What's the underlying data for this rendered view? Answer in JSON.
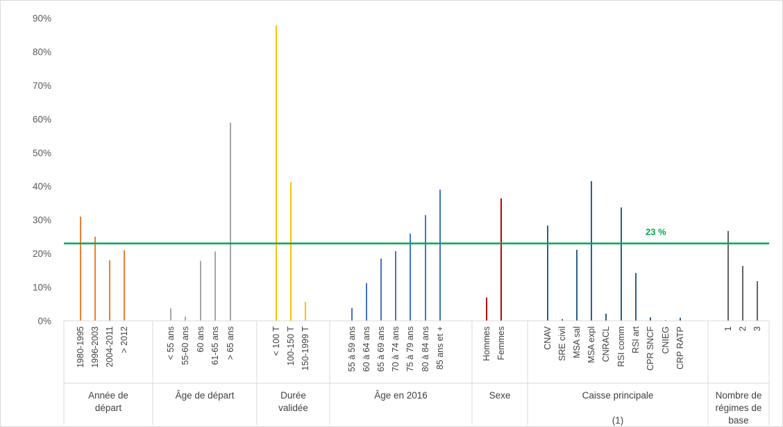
{
  "chart_data": {
    "type": "bar",
    "ylim": [
      0,
      90
    ],
    "yticks": [
      "0%",
      "10%",
      "20%",
      "30%",
      "40%",
      "50%",
      "60%",
      "70%",
      "80%",
      "90%"
    ],
    "grid": false,
    "reference_line": {
      "value": 23,
      "label": "23 %",
      "color": "#00A650"
    },
    "groups": [
      {
        "label": [
          "Année de",
          "départ"
        ],
        "color": "#ED7D31",
        "categories": [
          "1980-1995",
          "1996-2003",
          "2004-2011",
          "> 2012"
        ],
        "values": [
          31,
          25,
          18,
          21
        ]
      },
      {
        "label": [
          "Âge de départ"
        ],
        "color": "#A5A5A5",
        "categories": [
          "< 55 ans",
          "55-60 ans",
          "60 ans",
          "61-65 ans",
          "> 65 ans"
        ],
        "values": [
          3.7,
          1.2,
          17.8,
          20.6,
          58.9
        ]
      },
      {
        "label": [
          "Durée",
          "validée"
        ],
        "color": "#FFC000",
        "categories": [
          "< 100 T",
          "100-150 T",
          "150-1999 T"
        ],
        "values": [
          87.8,
          41.2,
          5.6
        ]
      },
      {
        "label": [
          "Âge en 2016"
        ],
        "color": "#4472C4",
        "categories": [
          "55 à 59 ans",
          "60 à 64 ans",
          "65 à 69 ans",
          "70 à 74 ans",
          "75 à 79 ans",
          "80 à 84 ans",
          "85 ans et +"
        ],
        "values": [
          3.8,
          11.2,
          18.5,
          20.7,
          25.9,
          31.4,
          39
        ]
      },
      {
        "label": [
          "Sexe"
        ],
        "color": "#C00000",
        "categories": [
          "Hommes",
          "Femmes"
        ],
        "values": [
          6.9,
          36.4
        ]
      },
      {
        "label": [
          "Caisse principale",
          "",
          "(1)"
        ],
        "color": "#255E91",
        "categories": [
          "CNAV",
          "SRE civil",
          "MSA sal",
          "MSA expl",
          "CNRACL",
          "RSI comm",
          "RSI art",
          "CPR SNCF",
          "CNIEG",
          "CRP RATP"
        ],
        "values": [
          28.3,
          0.5,
          21.1,
          41.5,
          2.1,
          33.7,
          14.2,
          1,
          0.2,
          0.9
        ]
      },
      {
        "label": [
          "Nombre de",
          "régimes de",
          "base"
        ],
        "color": "#636363",
        "categories": [
          "1",
          "2",
          "3"
        ],
        "values": [
          26.7,
          16.3,
          11.8
        ]
      }
    ]
  }
}
